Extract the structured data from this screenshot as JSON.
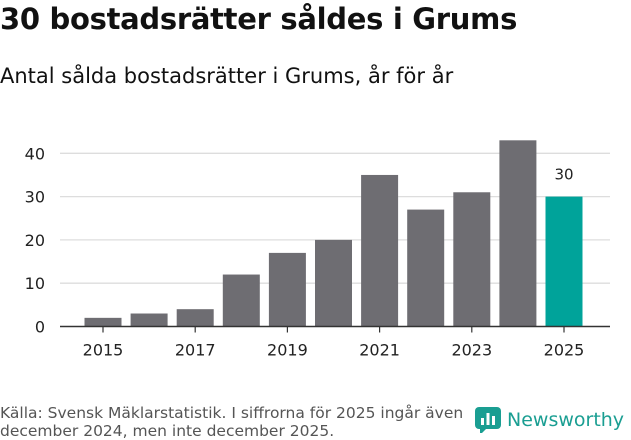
{
  "colors": {
    "bar": "#6e6d72",
    "highlight": "#00a39a",
    "grid": "#dddddd",
    "axis": "#333333",
    "brand": "#1a9e92"
  },
  "source_text": "Källa: Svensk Mäklarstatistik. I siffrorna för 2025 ingår även december 2024, men inte december 2025.",
  "brand_name": "Newsworthy",
  "brand_icon": "newsworthy-chart-icon",
  "chart_data": {
    "type": "bar",
    "title": "30 bostadsrätter såldes i Grums",
    "subtitle": "Antal sålda bostadsrätter i Grums, år för år",
    "categories": [
      "2015",
      "2016",
      "2017",
      "2018",
      "2019",
      "2020",
      "2021",
      "2022",
      "2023",
      "2024",
      "2025"
    ],
    "values": [
      2,
      3,
      4,
      12,
      17,
      20,
      35,
      27,
      31,
      43,
      30
    ],
    "highlight_index": 10,
    "data_labels": [
      {
        "index": 10,
        "text": "30"
      }
    ],
    "x_tick_labels": [
      "2015",
      "2017",
      "2019",
      "2021",
      "2023",
      "2025"
    ],
    "y_ticks": [
      0,
      10,
      20,
      30,
      40
    ],
    "ylim": [
      0,
      45
    ],
    "xlabel": "",
    "ylabel": "",
    "grid": true
  }
}
